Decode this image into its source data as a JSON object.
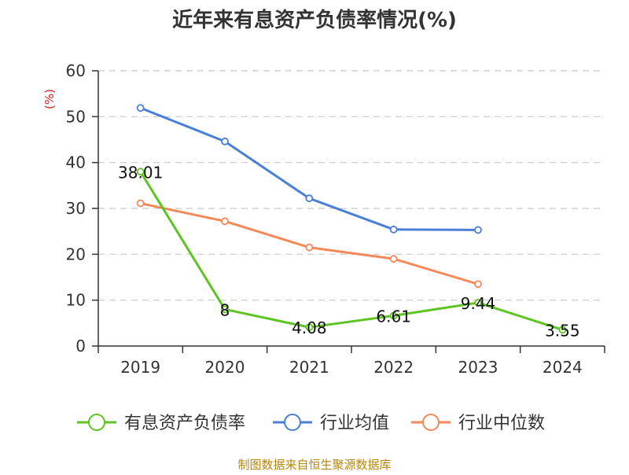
{
  "chart_data": {
    "type": "line",
    "title": "近年来有息资产负债率情况(%)",
    "ylabel": "(%)",
    "xlabel": "",
    "categories": [
      "2019",
      "2020",
      "2021",
      "2022",
      "2023",
      "2024"
    ],
    "ylim": [
      0,
      60
    ],
    "yticks": [
      0,
      10,
      20,
      30,
      40,
      50,
      60
    ],
    "grid": true,
    "legend_position": "bottom",
    "series": [
      {
        "name": "有息资产负债率",
        "color": "#5ec423",
        "values": [
          38.01,
          8,
          4.08,
          6.61,
          9.44,
          3.55
        ],
        "labels": [
          "38.01",
          "8",
          "4.08",
          "6.61",
          "9.44",
          "3.55"
        ],
        "show_labels": true
      },
      {
        "name": "行业均值",
        "color": "#4a7fd8",
        "values": [
          51.9,
          44.6,
          32.2,
          25.4,
          25.3,
          null
        ],
        "show_labels": false
      },
      {
        "name": "行业中位数",
        "color": "#f5895a",
        "values": [
          31.1,
          27.2,
          21.5,
          19.0,
          13.5,
          null
        ],
        "show_labels": false
      }
    ]
  },
  "source": "制图数据来自恒生聚源数据库"
}
